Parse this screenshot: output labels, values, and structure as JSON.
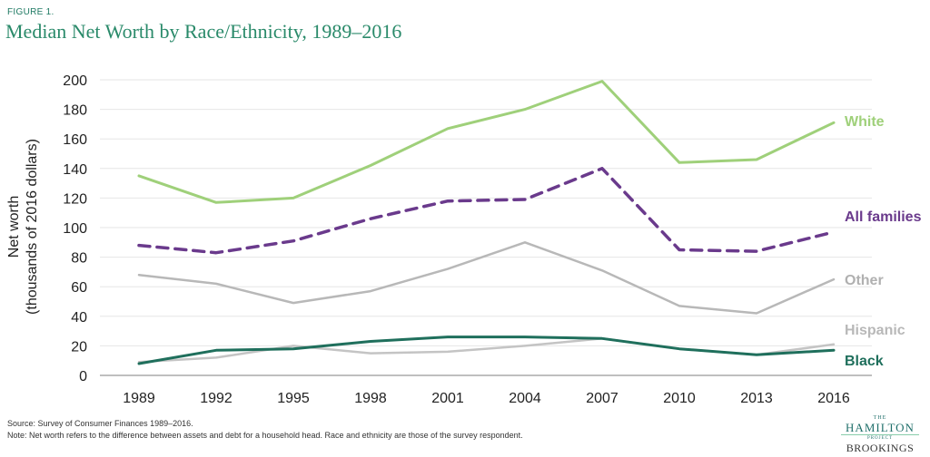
{
  "figure_label": "FIGURE 1.",
  "title": "Median Net Worth by Race/Ethnicity, 1989–2016",
  "footer": {
    "source": "Source: Survey of Consumer Finances 1989–2016.",
    "note": "Note: Net worth refers to the difference between assets and debt for a household head. Race and ethnicity are those of the survey respondent."
  },
  "logo": {
    "the": "THE",
    "hamilton": "HAMILTON",
    "project": "PROJECT",
    "brookings": "BROOKINGS"
  },
  "chart_data": {
    "type": "line",
    "title": "Median Net Worth by Race/Ethnicity, 1989–2016",
    "ylabel_line1": "Net worth",
    "ylabel_line2": "(thousands of 2016 dollars)",
    "xlabel": "",
    "x": [
      "1989",
      "1992",
      "1995",
      "1998",
      "2001",
      "2004",
      "2007",
      "2010",
      "2013",
      "2016"
    ],
    "yticks": [
      "0",
      "20",
      "40",
      "60",
      "80",
      "100",
      "120",
      "140",
      "160",
      "180",
      "200"
    ],
    "ylim": [
      0,
      200
    ],
    "grid": true,
    "series": [
      {
        "name": "White",
        "color": "#9fd07a",
        "dash": false,
        "width": 3,
        "values": [
          135,
          117,
          120,
          142,
          167,
          180,
          199,
          144,
          146,
          171
        ]
      },
      {
        "name": "All families",
        "color": "#6a3a8c",
        "dash": true,
        "width": 3.5,
        "values": [
          88,
          83,
          91,
          106,
          118,
          119,
          140,
          85,
          84,
          97
        ]
      },
      {
        "name": "Other",
        "color": "#b8b8b8",
        "dash": false,
        "width": 2.5,
        "values": [
          68,
          62,
          49,
          57,
          72,
          90,
          71,
          47,
          42,
          65
        ]
      },
      {
        "name": "Hispanic",
        "color": "#c4c4c4",
        "dash": false,
        "width": 2.5,
        "values": [
          9,
          12,
          20,
          15,
          16,
          20,
          25,
          18,
          14,
          21
        ]
      },
      {
        "name": "Black",
        "color": "#1f6f5c",
        "dash": false,
        "width": 3,
        "values": [
          8,
          17,
          18,
          23,
          26,
          26,
          25,
          18,
          14,
          17
        ]
      }
    ]
  }
}
